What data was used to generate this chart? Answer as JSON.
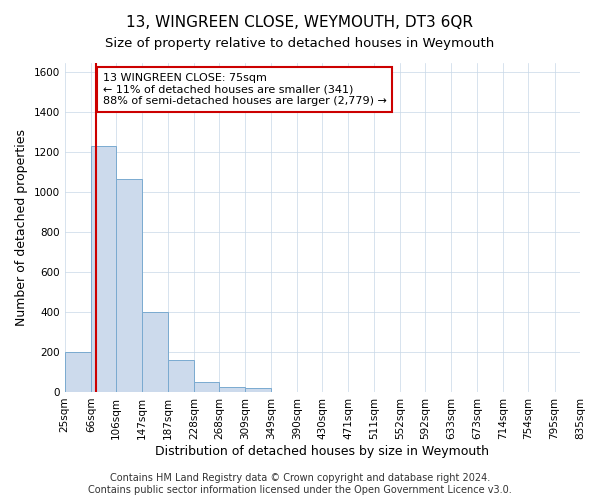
{
  "title": "13, WINGREEN CLOSE, WEYMOUTH, DT3 6QR",
  "subtitle": "Size of property relative to detached houses in Weymouth",
  "xlabel": "Distribution of detached houses by size in Weymouth",
  "ylabel": "Number of detached properties",
  "footer_line1": "Contains HM Land Registry data © Crown copyright and database right 2024.",
  "footer_line2": "Contains public sector information licensed under the Open Government Licence v3.0.",
  "bin_edges": [
    25,
    66,
    106,
    147,
    187,
    228,
    268,
    309,
    349,
    390,
    430,
    471,
    511,
    552,
    592,
    633,
    673,
    714,
    754,
    795,
    835
  ],
  "bar_heights": [
    200,
    1230,
    1065,
    400,
    160,
    50,
    25,
    20,
    0,
    0,
    0,
    0,
    0,
    0,
    0,
    0,
    0,
    0,
    0,
    0
  ],
  "bar_color": "#ccdaec",
  "bar_edgecolor": "#7aaad0",
  "property_size": 75,
  "vline_color": "#cc0000",
  "annotation_text": "13 WINGREEN CLOSE: 75sqm\n← 11% of detached houses are smaller (341)\n88% of semi-detached houses are larger (2,779) →",
  "annotation_box_color": "#cc0000",
  "annotation_text_color": "#000000",
  "ylim": [
    0,
    1650
  ],
  "yticks": [
    0,
    200,
    400,
    600,
    800,
    1000,
    1200,
    1400,
    1600
  ],
  "grid_color": "#c8d8e8",
  "background_color": "#ffffff",
  "title_fontsize": 11,
  "subtitle_fontsize": 9.5,
  "axis_label_fontsize": 9,
  "tick_fontsize": 7.5,
  "footer_fontsize": 7,
  "ann_fontsize": 8
}
